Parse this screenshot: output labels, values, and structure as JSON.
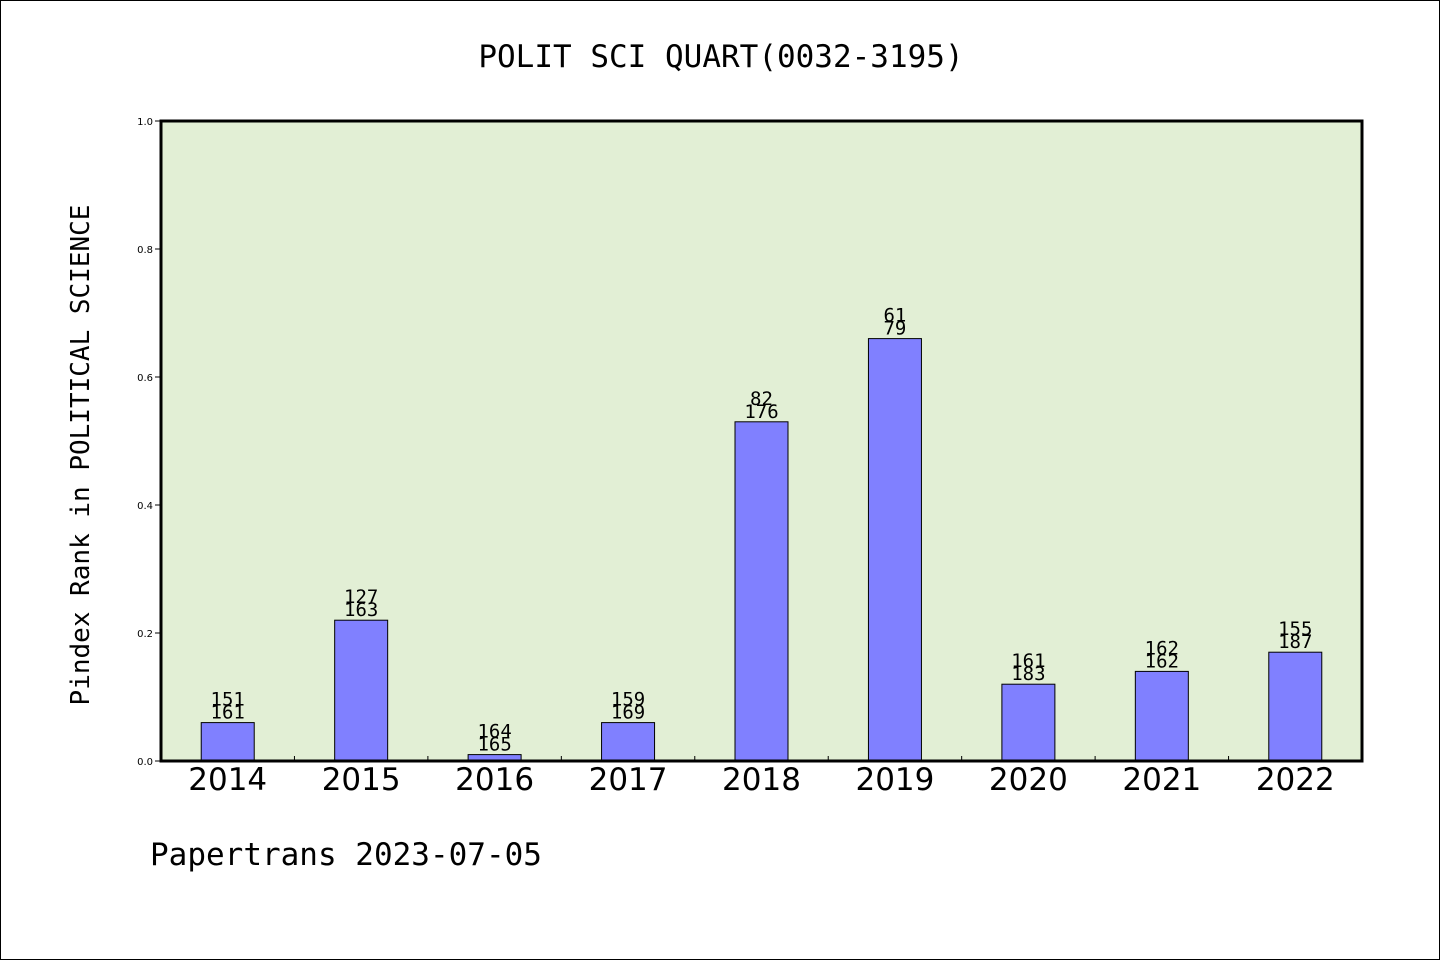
{
  "chart_data": {
    "type": "bar",
    "title": "POLIT SCI QUART(0032-3195)",
    "ylabel": "Pindex Rank in POLITICAL SCIENCE",
    "xlabel": "",
    "footer": "Papertrans 2023-07-05",
    "categories": [
      "2014",
      "2015",
      "2016",
      "2017",
      "2018",
      "2019",
      "2020",
      "2021",
      "2022"
    ],
    "values": [
      0.06,
      0.22,
      0.01,
      0.06,
      0.53,
      0.66,
      0.12,
      0.14,
      0.17
    ],
    "labels_top": [
      "151",
      "127",
      "164",
      "159",
      "82",
      "61",
      "161",
      "162",
      "155"
    ],
    "labels_bottom": [
      "161",
      "163",
      "165",
      "169",
      "176",
      "79",
      "183",
      "162",
      "187"
    ],
    "ylim": [
      0,
      1.0
    ],
    "yticks": [
      "0.0",
      "0.2",
      "0.4",
      "0.6",
      "0.8",
      "1.0"
    ],
    "grid": false,
    "colors": {
      "bar_fill": "#8080ff",
      "plot_background": "#e2efd5",
      "axis": "#000000"
    }
  }
}
